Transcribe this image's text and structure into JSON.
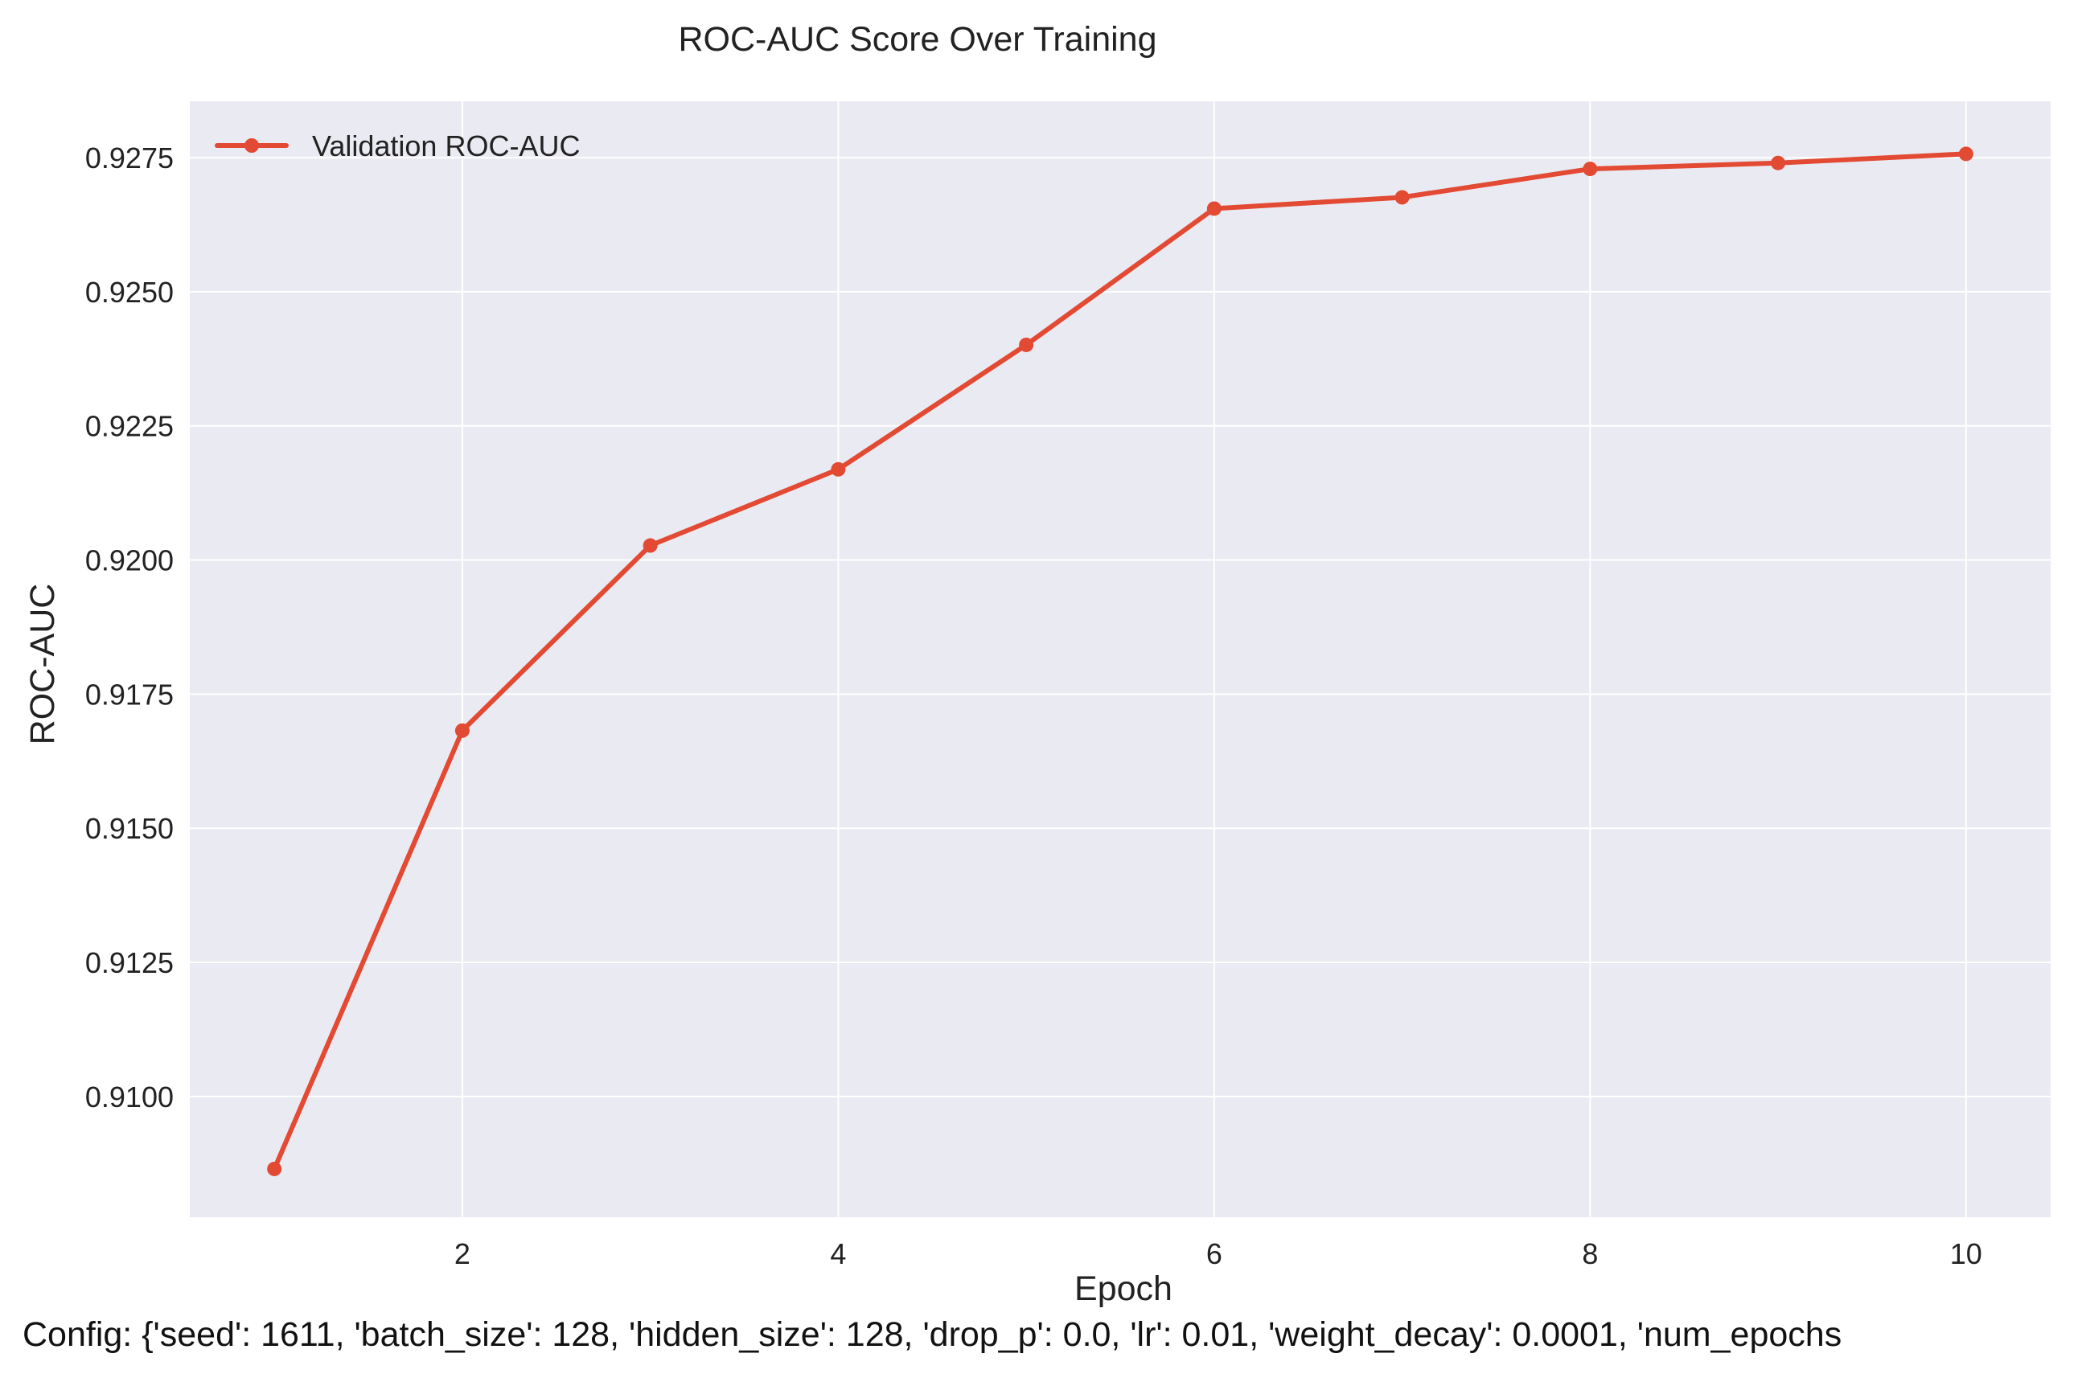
{
  "chart_data": {
    "type": "line",
    "title": "ROC-AUC Score Over Training",
    "xlabel": "Epoch",
    "ylabel": "ROC-AUC",
    "x": [
      1,
      2,
      3,
      4,
      5,
      6,
      7,
      8,
      9,
      10
    ],
    "series": [
      {
        "name": "Validation ROC-AUC",
        "color": "#e24a33",
        "values": [
          0.90865,
          0.91682,
          0.92027,
          0.92169,
          0.92401,
          0.92655,
          0.92676,
          0.92729,
          0.9274,
          0.92757
        ]
      }
    ],
    "xlim": [
      0.55,
      10.45
    ],
    "ylim": [
      0.90775,
      0.92855
    ],
    "xticks": [
      2,
      4,
      6,
      8,
      10
    ],
    "xtick_labels": [
      "2",
      "4",
      "6",
      "8",
      "10"
    ],
    "yticks": [
      0.91,
      0.9125,
      0.915,
      0.9175,
      0.92,
      0.9225,
      0.925,
      0.9275
    ],
    "ytick_labels": [
      "0.9100",
      "0.9125",
      "0.9150",
      "0.9175",
      "0.9200",
      "0.9225",
      "0.9250",
      "0.9275"
    ],
    "grid": true,
    "legend_position": "top-left",
    "background_color": "#eaeaf2",
    "footnote": "Config: {'seed': 1611, 'batch_size': 128, 'hidden_size': 128, 'drop_p': 0.0, 'lr': 0.01, 'weight_decay': 0.0001, 'num_epochs"
  }
}
